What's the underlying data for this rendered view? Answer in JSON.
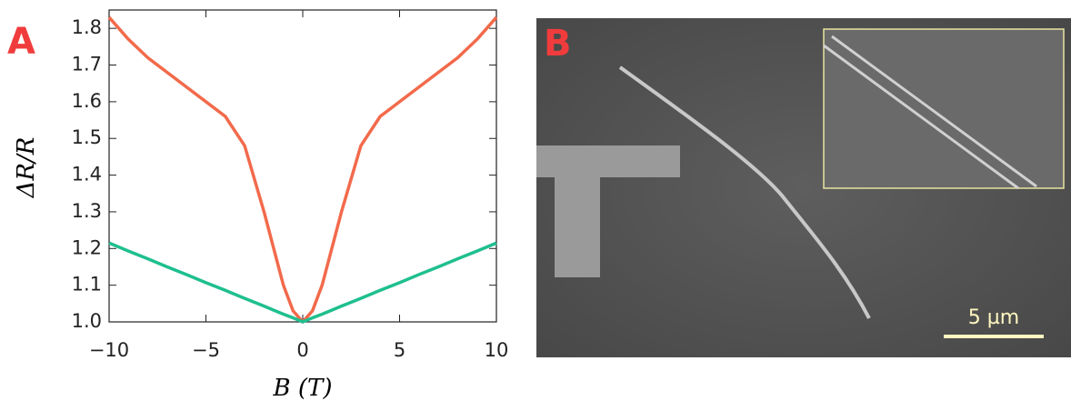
{
  "chart_data": {
    "type": "line",
    "xlabel": "B (T)",
    "ylabel": "ΔR/R",
    "x": [
      -10,
      -9,
      -8,
      -7,
      -6,
      -5,
      -4,
      -3,
      -2,
      -1.5,
      -1,
      -0.5,
      0,
      0.5,
      1,
      1.5,
      2,
      3,
      4,
      5,
      6,
      7,
      8,
      9,
      10
    ],
    "series": [
      {
        "color": "#f26a4b",
        "values": [
          1.83,
          1.77,
          1.72,
          1.68,
          1.64,
          1.6,
          1.56,
          1.48,
          1.3,
          1.2,
          1.1,
          1.03,
          1.0,
          1.03,
          1.1,
          1.2,
          1.3,
          1.48,
          1.56,
          1.6,
          1.64,
          1.68,
          1.72,
          1.77,
          1.83
        ]
      },
      {
        "color": "#1fbf8f",
        "values": [
          1.215,
          1.193,
          1.172,
          1.15,
          1.129,
          1.107,
          1.086,
          1.064,
          1.043,
          1.032,
          1.021,
          1.011,
          1.0,
          1.011,
          1.021,
          1.032,
          1.043,
          1.064,
          1.086,
          1.107,
          1.129,
          1.15,
          1.172,
          1.193,
          1.215
        ]
      }
    ],
    "xlim": [
      -10,
      10
    ],
    "xticks": [
      {
        "value": -10,
        "label": "−10"
      },
      {
        "value": -5,
        "label": "−5"
      },
      0,
      5,
      10
    ],
    "ylim": [
      1.0,
      1.85
    ],
    "yticks": [
      {
        "value": 1.0,
        "label": "1.0"
      },
      1.1,
      1.2,
      1.3,
      1.4,
      1.5,
      1.6,
      1.7,
      1.8
    ],
    "grid": false
  },
  "panel_labels": [
    "A",
    "B"
  ],
  "scale_bar": "5 µm"
}
